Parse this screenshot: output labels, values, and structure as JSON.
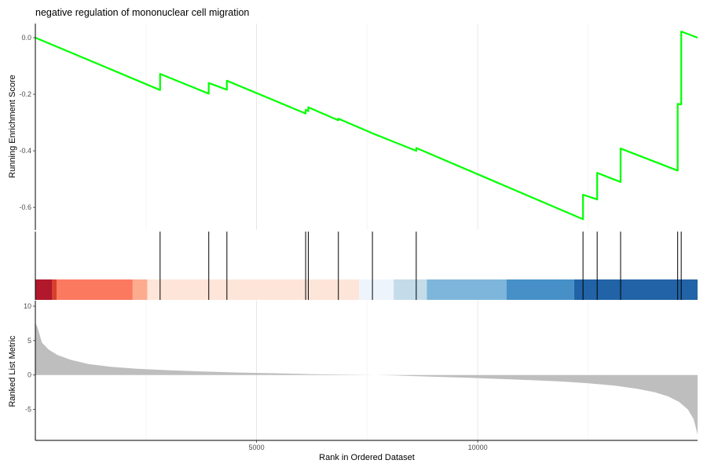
{
  "chart_data": {
    "type": "line",
    "title": "negative regulation of mononuclear cell migration",
    "xlabel": "Rank in Ordered Dataset",
    "xlim": [
      0,
      14970
    ],
    "x_ticks": [
      5000,
      10000
    ],
    "grid": "vertical major gridlines",
    "enrichment_panel": {
      "ylabel": "Running Enrichment Score",
      "ylim": [
        -0.68,
        0.05
      ],
      "y_ticks": [
        0.0,
        -0.2,
        -0.4,
        -0.6
      ],
      "series": [
        {
          "color": "#00ff00",
          "x": [
            0,
            2820,
            2820,
            3920,
            3920,
            4330,
            4330,
            6110,
            6110,
            6170,
            6170,
            6850,
            6850,
            7620,
            7620,
            8610,
            8610,
            12380,
            12380,
            12700,
            12700,
            13230,
            13230,
            14520,
            14520,
            14600,
            14600,
            14970
          ],
          "y": [
            0.0,
            -0.185,
            -0.128,
            -0.198,
            -0.16,
            -0.184,
            -0.152,
            -0.268,
            -0.255,
            -0.26,
            -0.246,
            -0.292,
            -0.286,
            -0.338,
            -0.338,
            -0.4,
            -0.39,
            -0.642,
            -0.555,
            -0.572,
            -0.478,
            -0.51,
            -0.392,
            -0.47,
            -0.234,
            -0.236,
            0.022,
            0.0
          ]
        }
      ]
    },
    "hits_panel": {
      "hit_ranks": [
        2820,
        3920,
        4330,
        6110,
        6170,
        6850,
        7620,
        8610,
        12380,
        12700,
        13230,
        14520,
        14600
      ],
      "color_bands": [
        {
          "start": 0,
          "end": 380,
          "color": "#b2182b"
        },
        {
          "start": 380,
          "end": 480,
          "color": "#d6402e"
        },
        {
          "start": 480,
          "end": 2200,
          "color": "#fb795f"
        },
        {
          "start": 2200,
          "end": 2530,
          "color": "#fcab8f"
        },
        {
          "start": 2530,
          "end": 7320,
          "color": "#fee5d9"
        },
        {
          "start": 7320,
          "end": 8100,
          "color": "#eef4fb"
        },
        {
          "start": 8100,
          "end": 8850,
          "color": "#c4dbe9"
        },
        {
          "start": 8850,
          "end": 10650,
          "color": "#7db6da"
        },
        {
          "start": 10650,
          "end": 12180,
          "color": "#4690c7"
        },
        {
          "start": 12180,
          "end": 14970,
          "color": "#2163a6"
        }
      ]
    },
    "ranked_panel": {
      "ylabel": "Ranked List Metric",
      "ylim": [
        -9.5,
        10.8
      ],
      "y_ticks": [
        10,
        5,
        0,
        -5
      ],
      "fill_color": "#bebebe",
      "x": [
        0,
        50,
        150,
        300,
        500,
        800,
        1200,
        1700,
        2300,
        3000,
        3800,
        4600,
        5400,
        6200,
        7000,
        7700,
        8200,
        9000,
        9800,
        10500,
        11200,
        11900,
        12500,
        13100,
        13600,
        14000,
        14300,
        14550,
        14750,
        14880,
        14930,
        14970
      ],
      "values": [
        7.6,
        6.9,
        4.7,
        3.7,
        2.9,
        2.2,
        1.6,
        1.2,
        0.9,
        0.7,
        0.5,
        0.35,
        0.25,
        0.12,
        0.05,
        0.0,
        -0.08,
        -0.25,
        -0.4,
        -0.58,
        -0.75,
        -0.95,
        -1.2,
        -1.55,
        -2.0,
        -2.5,
        -3.1,
        -3.9,
        -5.0,
        -6.4,
        -7.6,
        -8.7
      ]
    }
  }
}
